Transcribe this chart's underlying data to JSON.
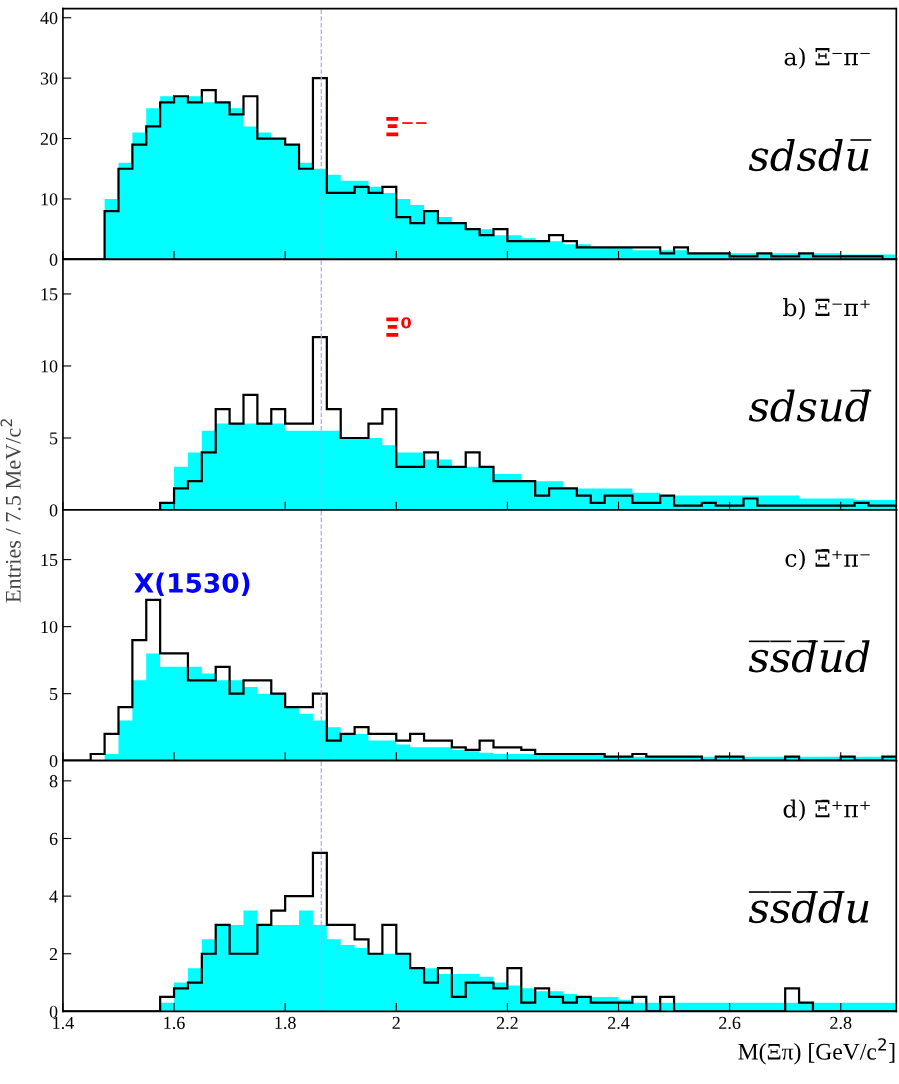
{
  "chart_data": [
    {
      "type": "histogram",
      "bins": [
        1.4,
        1.425,
        1.45,
        1.475,
        1.5,
        1.525,
        1.55,
        1.575,
        1.6,
        1.625,
        1.65,
        1.675,
        1.7,
        1.725,
        1.75,
        1.775,
        1.8,
        1.825,
        1.85,
        1.875,
        1.9,
        1.925,
        1.95,
        1.975,
        2.0,
        2.025,
        2.05,
        2.075,
        2.1,
        2.125,
        2.15,
        2.175,
        2.2,
        2.225,
        2.25,
        2.275,
        2.3,
        2.325,
        2.35,
        2.375,
        2.4,
        2.425,
        2.45,
        2.475,
        2.5,
        2.525,
        2.55,
        2.575,
        2.6,
        2.625,
        2.65,
        2.675,
        2.7,
        2.725,
        2.75,
        2.775,
        2.8,
        2.825,
        2.85,
        2.875,
        2.9
      ],
      "xlim": [
        1.4,
        2.9
      ],
      "ylim": [
        0,
        41.5
      ],
      "yticks": [
        0,
        10,
        20,
        30,
        40
      ],
      "tick_labels": "y",
      "series": [
        {
          "color": "#00ffff",
          "values": [
            0,
            0,
            0,
            10,
            16,
            21,
            25,
            27,
            27,
            27,
            26,
            26,
            25,
            22,
            21,
            20,
            19,
            16,
            15,
            14,
            13,
            13,
            12,
            11,
            10,
            9,
            8,
            7,
            6,
            5,
            5,
            4,
            4,
            3.5,
            3,
            3,
            2.5,
            2.5,
            2,
            2,
            2,
            1.5,
            1.5,
            1.5,
            1.5,
            1,
            1,
            1,
            1,
            1,
            1,
            1,
            1,
            1,
            1,
            1,
            0.8,
            0.8,
            0.8,
            0.8
          ]
        },
        {
          "color": "#000000",
          "values": [
            0,
            0,
            0,
            8,
            15,
            19,
            22,
            26,
            27,
            26,
            28,
            26,
            24,
            27,
            20,
            20,
            19,
            15,
            30,
            11,
            11,
            12,
            11,
            12,
            7,
            6,
            8,
            6,
            6,
            5,
            4,
            5,
            3,
            3,
            3,
            4,
            3,
            2,
            2,
            2,
            2,
            2,
            2,
            1,
            2,
            1,
            1,
            1,
            0.5,
            0.5,
            1,
            0.5,
            0.5,
            1,
            0.5,
            0.5,
            0.5,
            0.5,
            0.5,
            0
          ]
        }
      ],
      "ref_lines": [
        {
          "axis": "x",
          "value": 1.865,
          "color": "#aaaaff",
          "line_style": "dashed"
        }
      ],
      "annotations": [
        "a) Ξ⁻π⁻",
        "sdsdu̅",
        "Ξ⁻⁻"
      ]
    },
    {
      "type": "histogram",
      "bins": [
        1.4,
        1.425,
        1.45,
        1.475,
        1.5,
        1.525,
        1.55,
        1.575,
        1.6,
        1.625,
        1.65,
        1.675,
        1.7,
        1.725,
        1.75,
        1.775,
        1.8,
        1.825,
        1.85,
        1.875,
        1.9,
        1.925,
        1.95,
        1.975,
        2.0,
        2.025,
        2.05,
        2.075,
        2.1,
        2.125,
        2.15,
        2.175,
        2.2,
        2.225,
        2.25,
        2.275,
        2.3,
        2.325,
        2.35,
        2.375,
        2.4,
        2.425,
        2.45,
        2.475,
        2.5,
        2.525,
        2.55,
        2.575,
        2.6,
        2.625,
        2.65,
        2.675,
        2.7,
        2.725,
        2.75,
        2.775,
        2.8,
        2.825,
        2.85,
        2.875,
        2.9
      ],
      "xlim": [
        1.4,
        2.9
      ],
      "ylim": [
        0,
        17.4
      ],
      "yticks": [
        0,
        5,
        10,
        15
      ],
      "tick_labels": "y",
      "ylabel": "Entries / 7.5 MeV/c$^{2}$",
      "series": [
        {
          "color": "#00ffff",
          "values": [
            0,
            0,
            0,
            0,
            0,
            0,
            0,
            0.5,
            3,
            4,
            5.5,
            6,
            6,
            6,
            6,
            6,
            5.5,
            5.5,
            5.5,
            5.5,
            5,
            5,
            5,
            4.5,
            4,
            4,
            3.5,
            3.5,
            3,
            3,
            3,
            2.5,
            2.5,
            2,
            2,
            2,
            1.5,
            1.5,
            1.5,
            1.5,
            1.5,
            1.2,
            1.2,
            1,
            1,
            1,
            1,
            1,
            1,
            1,
            1,
            1,
            1,
            0.8,
            0.8,
            0.8,
            0.8,
            0.7,
            0.7,
            0.7
          ]
        },
        {
          "color": "#000000",
          "values": [
            0,
            0,
            0,
            0,
            0,
            0,
            0,
            0.5,
            1.5,
            2,
            4,
            7,
            6,
            8,
            6,
            7,
            6,
            6,
            12,
            7,
            5,
            5,
            6,
            7,
            3,
            3,
            4,
            3,
            3,
            4,
            3,
            2,
            2,
            2,
            1,
            1.5,
            1.5,
            1,
            0.5,
            1,
            1,
            0.5,
            0.5,
            1,
            0.3,
            0.3,
            0.5,
            0.3,
            0.3,
            0.8,
            0.3,
            0.3,
            0.3,
            0.3,
            0.3,
            0.3,
            0.3,
            0.5,
            0.3,
            0.3
          ]
        }
      ],
      "ref_lines": [
        {
          "axis": "x",
          "value": 1.865,
          "color": "#aaaaff",
          "line_style": "dashed"
        }
      ],
      "annotations": [
        "b) Ξ⁻π⁺",
        "sdsud̅",
        "Ξ⁰"
      ]
    },
    {
      "type": "histogram",
      "bins": [
        1.4,
        1.425,
        1.45,
        1.475,
        1.5,
        1.525,
        1.55,
        1.575,
        1.6,
        1.625,
        1.65,
        1.675,
        1.7,
        1.725,
        1.75,
        1.775,
        1.8,
        1.825,
        1.85,
        1.875,
        1.9,
        1.925,
        1.95,
        1.975,
        2.0,
        2.025,
        2.05,
        2.075,
        2.1,
        2.125,
        2.15,
        2.175,
        2.2,
        2.225,
        2.25,
        2.275,
        2.3,
        2.325,
        2.35,
        2.375,
        2.4,
        2.425,
        2.45,
        2.475,
        2.5,
        2.525,
        2.55,
        2.575,
        2.6,
        2.625,
        2.65,
        2.675,
        2.7,
        2.725,
        2.75,
        2.775,
        2.8,
        2.825,
        2.85,
        2.875,
        2.9
      ],
      "xlim": [
        1.4,
        2.9
      ],
      "ylim": [
        0,
        18.7
      ],
      "yticks": [
        0,
        5,
        10,
        15
      ],
      "tick_labels": "y",
      "series": [
        {
          "color": "#00ffff",
          "values": [
            0,
            0,
            0,
            0.5,
            3,
            6,
            8,
            7,
            7,
            7,
            6.5,
            6,
            6,
            5.5,
            5,
            5,
            4,
            3.5,
            3,
            2.5,
            2,
            2,
            1.5,
            1.5,
            1.2,
            1,
            1,
            1,
            0.8,
            0.7,
            0.6,
            0.5,
            0.5,
            0.5,
            0.5,
            0.5,
            0.5,
            0.5,
            0.5,
            0.3,
            0.3,
            0.3,
            0.3,
            0.3,
            0.3,
            0.3,
            0.3,
            0.3,
            0.3,
            0.3,
            0.3,
            0.3,
            0.3,
            0.3,
            0.3,
            0.3,
            0.3,
            0.3,
            0.3,
            0.3
          ]
        },
        {
          "color": "#000000",
          "values": [
            0,
            0,
            0.5,
            2,
            4,
            9,
            12,
            8,
            8,
            6,
            6,
            7,
            5,
            6,
            6,
            5,
            4,
            4,
            5,
            1.5,
            2,
            2.5,
            2,
            2,
            1.5,
            2,
            1.5,
            1.5,
            1,
            0.8,
            1.5,
            1,
            1,
            0.8,
            0.5,
            0.5,
            0.5,
            0.5,
            0.5,
            0.3,
            0.3,
            0.5,
            0.3,
            0.3,
            0.3,
            0.3,
            0,
            0.3,
            0.3,
            0,
            0,
            0,
            0.3,
            0,
            0,
            0,
            0.3,
            0,
            0,
            0.3
          ]
        }
      ],
      "ref_lines": [
        {
          "axis": "x",
          "value": 1.865,
          "color": "#aaaaff",
          "line_style": "dashed"
        }
      ],
      "annotations": [
        "c) Ξ̄⁺π⁻",
        "s̅s̅d̅u̅d",
        "X(1530)"
      ]
    },
    {
      "type": "histogram",
      "bins": [
        1.4,
        1.425,
        1.45,
        1.475,
        1.5,
        1.525,
        1.55,
        1.575,
        1.6,
        1.625,
        1.65,
        1.675,
        1.7,
        1.725,
        1.75,
        1.775,
        1.8,
        1.825,
        1.85,
        1.875,
        1.9,
        1.925,
        1.95,
        1.975,
        2.0,
        2.025,
        2.05,
        2.075,
        2.1,
        2.125,
        2.15,
        2.175,
        2.2,
        2.225,
        2.25,
        2.275,
        2.3,
        2.325,
        2.35,
        2.375,
        2.4,
        2.425,
        2.45,
        2.475,
        2.5,
        2.525,
        2.55,
        2.575,
        2.6,
        2.625,
        2.65,
        2.675,
        2.7,
        2.725,
        2.75,
        2.775,
        2.8,
        2.825,
        2.85,
        2.875,
        2.9
      ],
      "xlim": [
        1.4,
        2.9
      ],
      "xticks": [
        1.4,
        1.6,
        1.8,
        2,
        2.2,
        2.4,
        2.6,
        2.8
      ],
      "ylim": [
        0,
        8.7
      ],
      "yticks": [
        0,
        2,
        4,
        6,
        8
      ],
      "xlabel": "M(Ξπ) [GeV/c$^{2}$]",
      "series": [
        {
          "color": "#00ffff",
          "values": [
            0,
            0,
            0,
            0,
            0,
            0,
            0,
            0.3,
            1,
            1.5,
            2.5,
            3,
            3,
            3.5,
            3,
            3,
            3,
            3.5,
            3,
            2.5,
            2.3,
            2.2,
            2,
            2,
            2,
            1.5,
            1.5,
            1.3,
            1.3,
            1.3,
            1.2,
            1,
            0.9,
            0.8,
            0.7,
            0.7,
            0.6,
            0.5,
            0.5,
            0.5,
            0.4,
            0.3,
            0.3,
            0.3,
            0.3,
            0.3,
            0.3,
            0.3,
            0.3,
            0.3,
            0.3,
            0.3,
            0.3,
            0.3,
            0.3,
            0.3,
            0.3,
            0.3,
            0.3,
            0.3
          ]
        },
        {
          "color": "#000000",
          "values": [
            0,
            0,
            0,
            0,
            0,
            0,
            0,
            0.5,
            0.8,
            1,
            2,
            3,
            2,
            2,
            3,
            3.5,
            4,
            4,
            5.5,
            3,
            3,
            2.5,
            2,
            3,
            2,
            1.5,
            1,
            1.5,
            0.5,
            1,
            1,
            0.8,
            1.5,
            0.3,
            0.8,
            0.5,
            0.3,
            0.5,
            0.3,
            0.3,
            0.3,
            0.5,
            0,
            0.5,
            0,
            0,
            0,
            0,
            0,
            0,
            0,
            0,
            0.8,
            0.3,
            0,
            0,
            0,
            0,
            0,
            0
          ]
        }
      ],
      "ref_lines": [
        {
          "axis": "x",
          "value": 1.865,
          "color": "#aaaaff",
          "line_style": "dashed"
        }
      ],
      "annotations": [
        "d) Ξ̄⁺π⁺",
        "s̅s̅d̅d̅u"
      ]
    }
  ]
}
